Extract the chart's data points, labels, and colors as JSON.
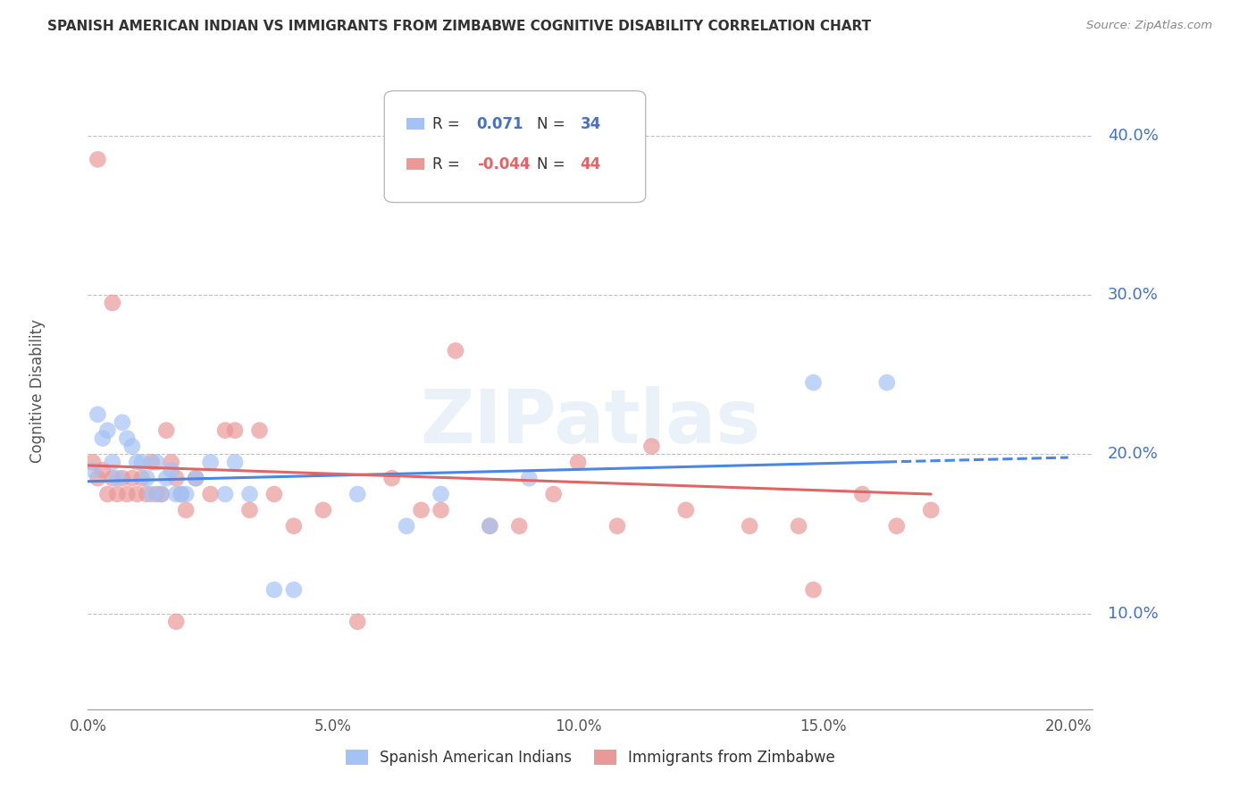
{
  "title": "SPANISH AMERICAN INDIAN VS IMMIGRANTS FROM ZIMBABWE COGNITIVE DISABILITY CORRELATION CHART",
  "source": "Source: ZipAtlas.com",
  "xlabel_ticks": [
    "0.0%",
    "",
    "",
    "",
    "",
    "5.0%",
    "",
    "",
    "",
    "",
    "10.0%",
    "",
    "",
    "",
    "",
    "15.0%",
    "",
    "",
    "",
    "",
    "20.0%"
  ],
  "xlabel_display": [
    "0.0%",
    "5.0%",
    "10.0%",
    "15.0%",
    "20.0%"
  ],
  "xlabel_display_vals": [
    0.0,
    0.05,
    0.1,
    0.15,
    0.2
  ],
  "ylabel_ticks": [
    "10.0%",
    "20.0%",
    "30.0%",
    "40.0%"
  ],
  "ylabel_vals": [
    0.1,
    0.2,
    0.3,
    0.4
  ],
  "ymin": 0.04,
  "ymax": 0.44,
  "xmin": 0.0,
  "xmax": 0.205,
  "blue_color": "#a4c2f4",
  "pink_color": "#ea9999",
  "trend_blue": "#4a86e8",
  "trend_pink": "#e06666",
  "watermark": "ZIPatlas",
  "blue_scatter_x": [
    0.001,
    0.002,
    0.003,
    0.004,
    0.005,
    0.006,
    0.007,
    0.008,
    0.009,
    0.01,
    0.011,
    0.012,
    0.013,
    0.014,
    0.015,
    0.016,
    0.017,
    0.018,
    0.019,
    0.02,
    0.022,
    0.025,
    0.028,
    0.03,
    0.033,
    0.038,
    0.042,
    0.055,
    0.065,
    0.072,
    0.082,
    0.09,
    0.148,
    0.163
  ],
  "blue_scatter_y": [
    0.19,
    0.225,
    0.21,
    0.215,
    0.195,
    0.185,
    0.22,
    0.21,
    0.205,
    0.195,
    0.195,
    0.185,
    0.175,
    0.195,
    0.175,
    0.185,
    0.19,
    0.175,
    0.175,
    0.175,
    0.185,
    0.195,
    0.175,
    0.195,
    0.175,
    0.115,
    0.115,
    0.175,
    0.155,
    0.175,
    0.155,
    0.185,
    0.245,
    0.245
  ],
  "pink_scatter_x": [
    0.001,
    0.002,
    0.003,
    0.004,
    0.005,
    0.006,
    0.007,
    0.008,
    0.009,
    0.01,
    0.011,
    0.012,
    0.013,
    0.014,
    0.015,
    0.016,
    0.017,
    0.018,
    0.019,
    0.02,
    0.022,
    0.025,
    0.028,
    0.03,
    0.033,
    0.038,
    0.042,
    0.048,
    0.055,
    0.062,
    0.068,
    0.072,
    0.082,
    0.088,
    0.095,
    0.1,
    0.108,
    0.115,
    0.122,
    0.135,
    0.145,
    0.158,
    0.165,
    0.172
  ],
  "pink_scatter_y": [
    0.195,
    0.185,
    0.19,
    0.175,
    0.185,
    0.175,
    0.185,
    0.175,
    0.185,
    0.175,
    0.185,
    0.175,
    0.195,
    0.175,
    0.175,
    0.215,
    0.195,
    0.185,
    0.175,
    0.165,
    0.185,
    0.175,
    0.215,
    0.215,
    0.165,
    0.175,
    0.155,
    0.165,
    0.095,
    0.185,
    0.165,
    0.165,
    0.155,
    0.155,
    0.175,
    0.195,
    0.155,
    0.205,
    0.165,
    0.155,
    0.155,
    0.175,
    0.155,
    0.165
  ],
  "pink_outlier_x": [
    0.002
  ],
  "pink_outlier_y": [
    0.385
  ],
  "pink_outlier2_x": [
    0.005
  ],
  "pink_outlier2_y": [
    0.295
  ],
  "pink_outlier3_x": [
    0.075
  ],
  "pink_outlier3_y": [
    0.265
  ],
  "pink_outlier4_x": [
    0.035
  ],
  "pink_outlier4_y": [
    0.215
  ],
  "pink_outlier5_x": [
    0.148
  ],
  "pink_outlier5_y": [
    0.115
  ],
  "pink_outlier6_x": [
    0.018
  ],
  "pink_outlier6_y": [
    0.095
  ],
  "blue_outlier_x": [
    0.148
  ],
  "blue_outlier_y": [
    0.245
  ]
}
